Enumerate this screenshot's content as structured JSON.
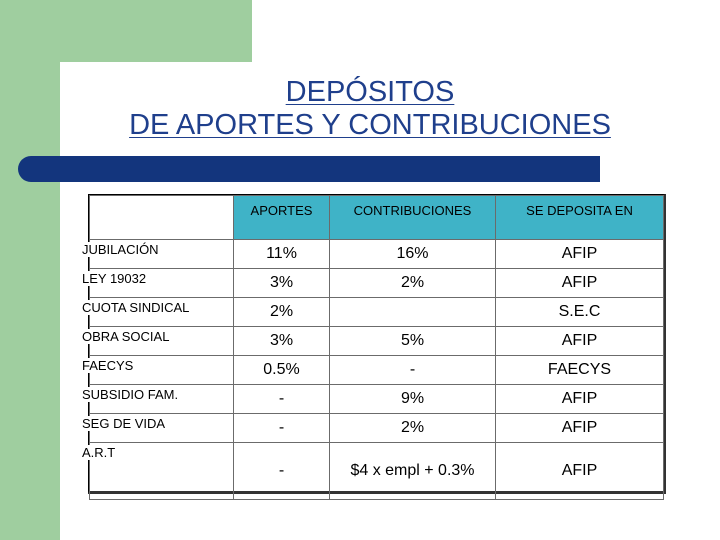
{
  "title": {
    "line1": "DEPÓSITOS",
    "line2": "DE APORTES Y CONTRIBUCIONES"
  },
  "table": {
    "headers": [
      "",
      "APORTES",
      "CONTRIBUCIONES",
      "SE DEPOSITA EN"
    ],
    "rows": [
      {
        "label": "JUBILACIÓN",
        "aportes": "11%",
        "contribuciones": "16%",
        "deposita": "AFIP"
      },
      {
        "label": "LEY 19032",
        "aportes": "3%",
        "contribuciones": "2%",
        "deposita": "AFIP"
      },
      {
        "label": "CUOTA SINDICAL",
        "aportes": "2%",
        "contribuciones": "",
        "deposita": "S.E.C"
      },
      {
        "label": "OBRA SOCIAL",
        "aportes": "3%",
        "contribuciones": "5%",
        "deposita": "AFIP"
      },
      {
        "label": "FAECYS",
        "aportes": "0.5%",
        "contribuciones": "-",
        "deposita": "FAECYS"
      },
      {
        "label": "SUBSIDIO FAM.",
        "aportes": "-",
        "contribuciones": "9%",
        "deposita": "AFIP"
      },
      {
        "label": "SEG DE VIDA",
        "aportes": "-",
        "contribuciones": "2%",
        "deposita": "AFIP"
      },
      {
        "label": "A.R.T",
        "aportes": "-",
        "contribuciones": "$4 x empl + 0.3%",
        "deposita": "AFIP"
      }
    ]
  },
  "colors": {
    "accent_green": "#9fce9f",
    "bar_navy": "#13357d",
    "header_teal": "#3fb3c7",
    "title_blue": "#1f3f8c"
  }
}
